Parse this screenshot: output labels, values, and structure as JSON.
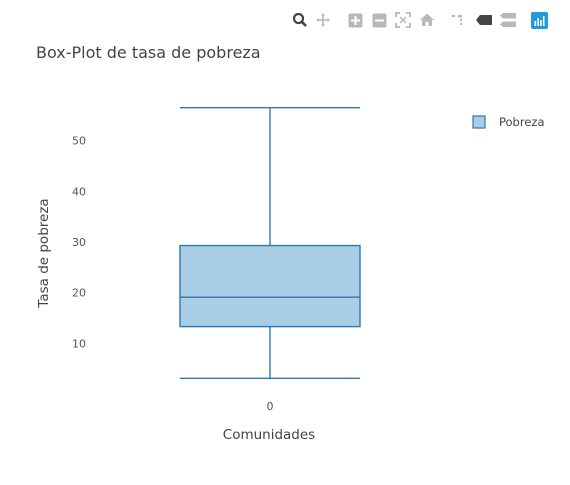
{
  "modebar": {
    "buttons": [
      "zoom-icon",
      "pan-icon",
      "zoom-in-icon",
      "zoom-out-icon",
      "autoscale-icon",
      "reset-axes-icon",
      "spike-lines-icon",
      "hover-closest-icon",
      "hover-compare-icon",
      "plotly-logo-icon"
    ],
    "accent": "#1f9ae0"
  },
  "chart_data": {
    "type": "box",
    "title": "Box-Plot de tasa de pobreza",
    "xlabel": "Comunidades",
    "ylabel": "Tasa de pobreza",
    "categories": [
      "0"
    ],
    "ylim": [
      0,
      60
    ],
    "yticks": [
      10,
      20,
      30,
      40,
      50
    ],
    "grid": false,
    "legend": {
      "position": "top-right",
      "entries": [
        "Pobreza"
      ]
    },
    "series": [
      {
        "name": "Pobreza",
        "lower_whisker": 3.1,
        "q1": 13.3,
        "median": 19.1,
        "q3": 29.3,
        "upper_whisker": 56.5,
        "fill": "#a8cde4",
        "line": "#2a78b4"
      }
    ]
  }
}
